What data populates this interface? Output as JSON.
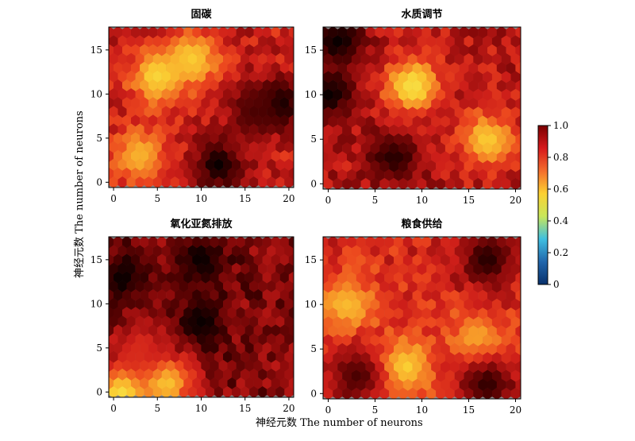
{
  "figure": {
    "ylabel": "神经元数  The number of neurons",
    "xlabel": "神经元数  The number of neurons"
  },
  "colorbar": {
    "ticks": [
      "1.0",
      "0.8",
      "0.6",
      "0.4",
      "0.2",
      "0"
    ],
    "stops": [
      "#7a0000",
      "#d7191c",
      "#f46d2c",
      "#fcd131",
      "#c8e65a",
      "#3fbfe0",
      "#2166ac",
      "#08306b"
    ]
  },
  "chart_data": [
    {
      "type": "heatmap",
      "title": "固碳",
      "xlim": [
        0,
        20
      ],
      "ylim": [
        0,
        17
      ],
      "xticks": [
        "0",
        "5",
        "10",
        "15",
        "20"
      ],
      "yticks": [
        "0",
        "5",
        "10",
        "15"
      ],
      "grid": false,
      "hotspots": [
        {
          "x": 5,
          "y": 12,
          "v": 0.6
        },
        {
          "x": 9,
          "y": 14,
          "v": 0.62
        },
        {
          "x": 3,
          "y": 3,
          "v": 0.65
        },
        {
          "x": 12,
          "y": 2,
          "v": 1.0
        },
        {
          "x": 19,
          "y": 9,
          "v": 1.0
        },
        {
          "x": 16,
          "y": 8,
          "v": 0.95
        }
      ],
      "base": 0.82
    },
    {
      "type": "heatmap",
      "title": "水质调节",
      "xlim": [
        0,
        20
      ],
      "ylim": [
        0,
        17
      ],
      "xticks": [
        "0",
        "5",
        "10",
        "15",
        "20"
      ],
      "yticks": [
        "0",
        "5",
        "10",
        "15"
      ],
      "grid": false,
      "hotspots": [
        {
          "x": 9,
          "y": 11,
          "v": 0.58
        },
        {
          "x": 17,
          "y": 5,
          "v": 0.62
        },
        {
          "x": 0,
          "y": 10,
          "v": 1.0
        },
        {
          "x": 1,
          "y": 16,
          "v": 1.0
        },
        {
          "x": 7,
          "y": 3,
          "v": 0.98
        }
      ],
      "base": 0.84
    },
    {
      "type": "heatmap",
      "title": "氧化亚氮排放",
      "xlim": [
        0,
        20
      ],
      "ylim": [
        0,
        17
      ],
      "xticks": [
        "0",
        "5",
        "10",
        "15",
        "20"
      ],
      "yticks": [
        "0",
        "5",
        "10",
        "15"
      ],
      "grid": false,
      "hotspots": [
        {
          "x": 10,
          "y": 8,
          "v": 1.0
        },
        {
          "x": 10,
          "y": 15,
          "v": 1.0
        },
        {
          "x": 1,
          "y": 13,
          "v": 1.0
        },
        {
          "x": 1,
          "y": 0,
          "v": 0.58
        },
        {
          "x": 6,
          "y": 1,
          "v": 0.62
        },
        {
          "x": 3,
          "y": 5,
          "v": 0.8
        }
      ],
      "base": 0.9
    },
    {
      "type": "heatmap",
      "title": "粮食供给",
      "xlim": [
        0,
        20
      ],
      "ylim": [
        0,
        17
      ],
      "xticks": [
        "0",
        "5",
        "10",
        "15",
        "20"
      ],
      "yticks": [
        "0",
        "5",
        "10",
        "15"
      ],
      "grid": false,
      "hotspots": [
        {
          "x": 2,
          "y": 10,
          "v": 0.64
        },
        {
          "x": 8,
          "y": 3,
          "v": 0.6
        },
        {
          "x": 16,
          "y": 6,
          "v": 0.66
        },
        {
          "x": 17,
          "y": 15,
          "v": 0.98
        },
        {
          "x": 17,
          "y": 1,
          "v": 0.97
        },
        {
          "x": 3,
          "y": 2,
          "v": 0.95
        }
      ],
      "base": 0.8
    }
  ]
}
